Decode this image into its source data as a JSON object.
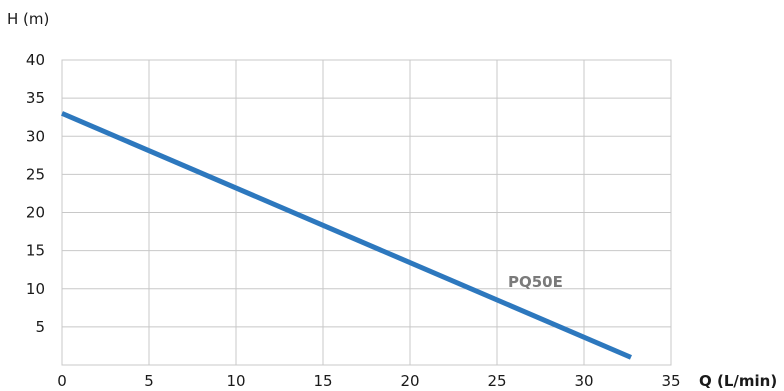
{
  "chart_data": {
    "type": "line",
    "xlabel": "Q (L/min)",
    "ylabel": "H (m)",
    "xlim": [
      0,
      35
    ],
    "ylim": [
      0,
      40
    ],
    "xticks": [
      "0",
      "5",
      "10",
      "15",
      "20",
      "25",
      "30",
      "35"
    ],
    "yticks": [
      "5",
      "10",
      "15",
      "20",
      "25",
      "30",
      "35",
      "40"
    ],
    "grid": true,
    "series": [
      {
        "name": "PQ50E",
        "color": "#2d78be",
        "label_color": "#7a7a7a",
        "points": [
          [
            0,
            33
          ],
          [
            32.7,
            1
          ]
        ]
      }
    ]
  }
}
